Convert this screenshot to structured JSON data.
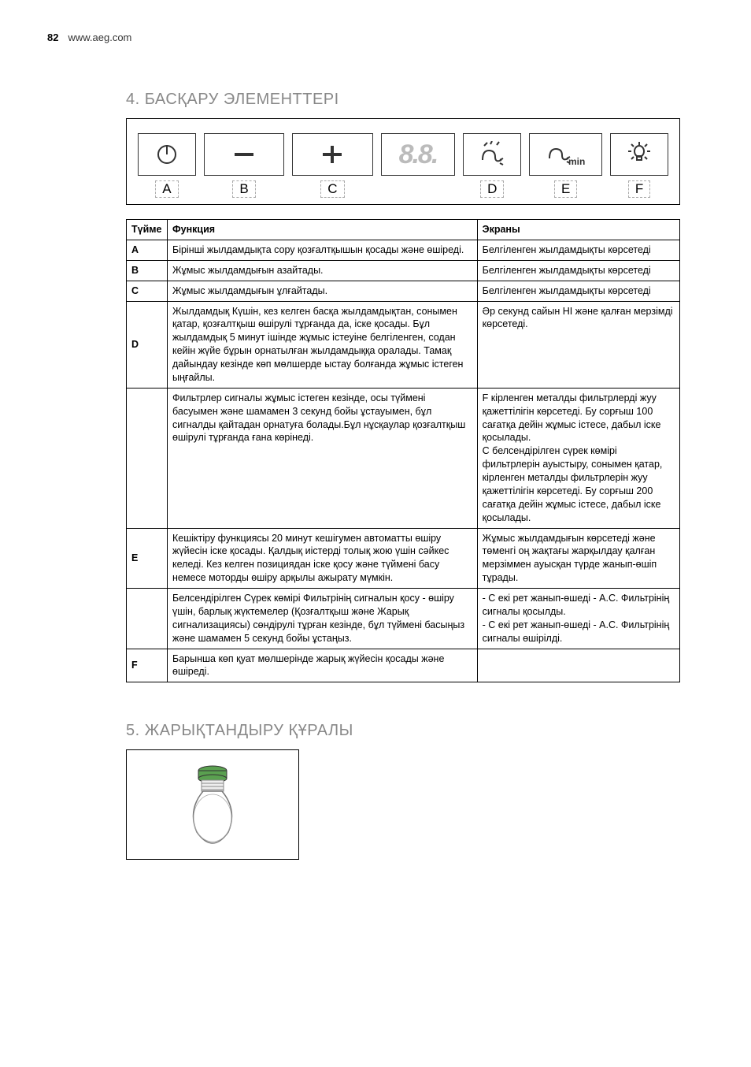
{
  "header": {
    "page_num": "82",
    "url": "www.aeg.com"
  },
  "section4": {
    "title": "4.  БАСҚАРУ ЭЛЕМЕНТТЕРІ",
    "panel": {
      "labels": [
        "A",
        "B",
        "C",
        "D",
        "E",
        "F"
      ],
      "digit_display": "8.8.",
      "min_label": "min"
    },
    "table": {
      "head": {
        "key": "Түйме",
        "func": "Функция",
        "disp": "Экраны"
      },
      "rows": [
        {
          "key": "A",
          "func": "Бірінші жылдамдықта сору қозғалтқышын қосады және өшіреді.",
          "disp": "Белгіленген жылдамдықты көрсетеді"
        },
        {
          "key": "B",
          "func": "Жұмыс жылдамдығын азайтады.",
          "disp": "Белгіленген жылдамдықты көрсетеді"
        },
        {
          "key": "C",
          "func": "Жұмыс жылдамдығын ұлғайтады.",
          "disp": "Белгіленген жылдамдықты көрсетеді"
        },
        {
          "key": "D",
          "func": "Жылдамдық Күшін, кез келген басқа жылдамдықтан, сонымен қатар, қозғалтқыш өшірулі тұрғанда да, іске қосады. Бұл жылдамдық 5 минут ішінде жұмыс істеуіне белгіленген, содан кейін жүйе бұрын орнатылған жылдамдыққа оралады. Тамақ дайындау кезінде көп мөлшерде ыстау болғанда жұмыс істеген ыңғайлы.",
          "disp": "Әр секунд сайын HI және қалған мерзімді көрсетеді."
        },
        {
          "key": "",
          "func": "Фильтрлер сигналы жұмыс істеген кезінде, осы түймені басуымен және шамамен 3 секунд бойы ұстауымен, бұл сигналды қайтадан орнатуға болады.Бұл нұсқаулар қозғалтқыш өшірулі тұрғанда ғана көрінеді.",
          "disp": "F    кірленген металды фильтрлерді жуу қажеттілігін көрсетеді. Бу сорғыш 100 сағатқа дейін жұмыс істесе, дабыл іске қосылады.\nC   белсендірілген сүрек көмірі фильтрлерін ауыстыру, сонымен қатар, кірленген металды фильтрлерін жуу қажеттілігін көрсетеді. Бу сорғыш 200 сағатқа дейін жұмыс істесе, дабыл іске қосылады."
        },
        {
          "key": "E",
          "func": "Кешіктіру функциясы 20 минут кешігумен автоматты өшіру жүйесін іске қосады. Қалдық иістерді толық жою үшін сәйкес келеді. Кез келген позициядан іске қосу және түймені басу немесе моторды өшіру арқылы ажырату мүмкін.",
          "disp": "Жұмыс жылдамдығын көрсетеді және төменгі оң жақтағы жарқылдау қалған мерзіммен ауысқан түрде жанып-өшіп тұрады."
        },
        {
          "key": "",
          "func": "Белсендірілген Сүрек көмірі Фильтрінің сигналын қосу - өшіру үшін, барлық жүктемелер (Қозғалтқыш және Жарық сигнализациясы) сөндірулі тұрған кезінде, бұл түймені басыңыз және шамамен 5 секунд бойы ұстаңыз.",
          "disp": "- С екі рет жанып-өшеді - A.C. Фильтрінің сигналы қосылды.\n- С екі рет жанып-өшеді - A.C. Фильтрінің сигналы өшірілді."
        },
        {
          "key": "F",
          "func": "Барынша көп қуат мөлшерінде жарық жүйесін қосады және өшіреді.",
          "disp": ""
        }
      ]
    }
  },
  "section5": {
    "title": "5.  ЖАРЫҚТАНДЫРУ ҚҰРАЛЫ"
  }
}
